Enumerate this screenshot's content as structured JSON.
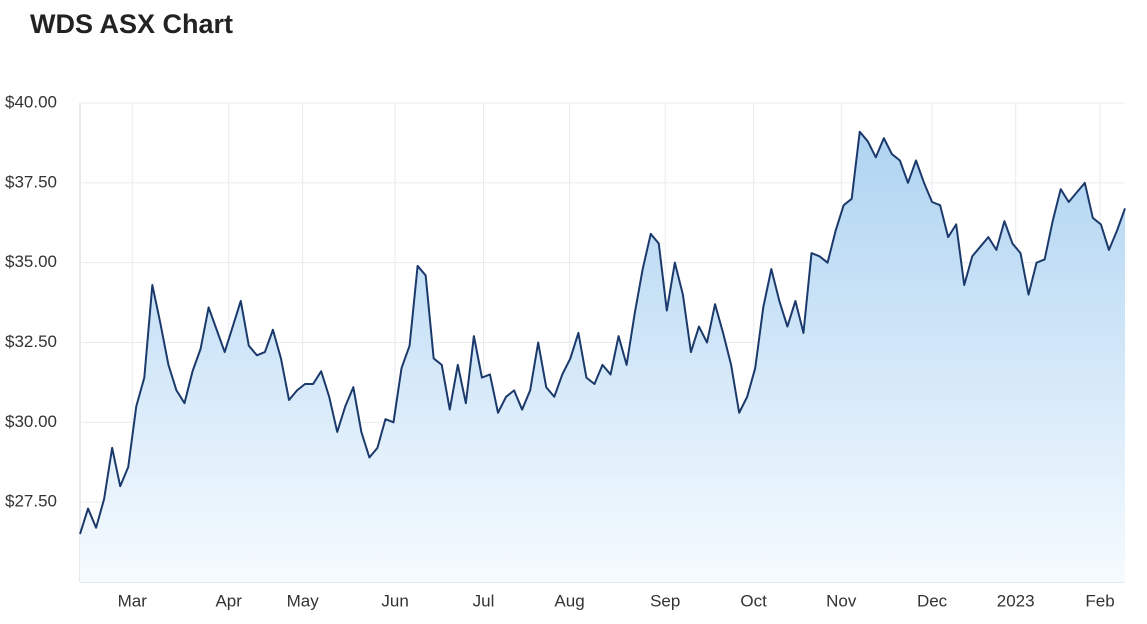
{
  "chart_data": {
    "type": "area",
    "title": "WDS ASX Chart",
    "x": [
      0,
      1,
      2,
      3,
      4,
      5,
      6,
      7,
      8,
      9,
      10,
      11,
      12,
      13,
      14,
      15,
      16,
      17,
      18,
      19,
      20,
      21,
      22,
      23,
      24,
      25,
      26,
      27,
      28,
      29,
      30,
      31,
      32,
      33,
      34,
      35,
      36,
      37,
      38,
      39,
      40,
      41,
      42,
      43,
      44,
      45,
      46,
      47,
      48,
      49,
      50,
      51,
      52,
      53,
      54,
      55,
      56,
      57,
      58,
      59,
      60,
      61,
      62,
      63,
      64,
      65,
      66,
      67,
      68,
      69,
      70,
      71,
      72,
      73,
      74,
      75,
      76,
      77,
      78,
      79,
      80,
      81,
      82,
      83,
      84,
      85,
      86,
      87,
      88,
      89,
      90,
      91,
      92,
      93,
      94,
      95,
      96,
      97,
      98,
      99,
      100,
      101,
      102,
      103,
      104,
      105,
      106,
      107,
      108,
      109,
      110,
      111,
      112,
      113,
      114,
      115,
      116,
      117,
      118,
      119,
      120,
      121,
      122,
      123,
      124,
      125,
      126,
      127,
      128,
      129,
      130
    ],
    "series": [
      {
        "name": "WDS",
        "color": "#1b3a6b",
        "values": [
          26.5,
          27.3,
          26.7,
          27.6,
          29.2,
          28.0,
          28.6,
          30.5,
          31.4,
          34.3,
          33.1,
          31.8,
          31.0,
          30.6,
          31.6,
          32.3,
          33.6,
          32.9,
          32.2,
          33.0,
          33.8,
          32.4,
          32.1,
          32.2,
          32.9,
          32.0,
          30.7,
          31.0,
          31.2,
          31.2,
          31.6,
          30.8,
          29.7,
          30.5,
          31.1,
          29.7,
          28.9,
          29.2,
          30.1,
          30.0,
          31.7,
          32.4,
          34.9,
          34.6,
          32.0,
          31.8,
          30.4,
          31.8,
          30.6,
          32.7,
          31.4,
          31.5,
          30.3,
          30.8,
          31.0,
          30.4,
          31.0,
          32.5,
          31.1,
          30.8,
          31.5,
          32.0,
          32.8,
          31.4,
          31.2,
          31.8,
          31.5,
          32.7,
          31.8,
          33.4,
          34.8,
          35.9,
          35.6,
          33.5,
          35.0,
          34.0,
          32.2,
          33.0,
          32.5,
          33.7,
          32.8,
          31.8,
          30.3,
          30.8,
          31.7,
          33.6,
          34.8,
          33.8,
          33.0,
          33.8,
          32.8,
          35.3,
          35.2,
          35.0,
          36.0,
          36.8,
          37.0,
          39.1,
          38.8,
          38.3,
          38.9,
          38.4,
          38.2,
          37.5,
          38.2,
          37.5,
          36.9,
          36.8,
          35.8,
          36.2,
          34.3,
          35.2,
          35.5,
          35.8,
          35.4,
          36.3,
          35.6,
          35.3,
          34.0,
          35.0,
          35.1,
          36.3,
          37.3,
          36.9,
          37.2,
          37.5,
          36.4,
          36.2,
          35.4,
          36.0,
          36.7
        ]
      }
    ],
    "xlim": [
      0,
      130
    ],
    "xticks": [
      {
        "value": 6.5,
        "label": "Mar"
      },
      {
        "value": 18.5,
        "label": "Apr"
      },
      {
        "value": 27.7,
        "label": "May"
      },
      {
        "value": 39.2,
        "label": "Jun"
      },
      {
        "value": 50.2,
        "label": "Jul"
      },
      {
        "value": 60.9,
        "label": "Aug"
      },
      {
        "value": 72.8,
        "label": "Sep"
      },
      {
        "value": 83.8,
        "label": "Oct"
      },
      {
        "value": 94.7,
        "label": "Nov"
      },
      {
        "value": 106,
        "label": "Dec"
      },
      {
        "value": 116.4,
        "label": "2023"
      },
      {
        "value": 126.9,
        "label": "Feb"
      }
    ],
    "ylim": [
      25,
      40
    ],
    "yticks": [
      {
        "value": 27.5,
        "label": "$27.50"
      },
      {
        "value": 30,
        "label": "$30.00"
      },
      {
        "value": 32.5,
        "label": "$32.50"
      },
      {
        "value": 35,
        "label": "$35.00"
      },
      {
        "value": 37.5,
        "label": "$37.50"
      },
      {
        "value": 40,
        "label": "$40.00"
      }
    ],
    "grid": true
  }
}
